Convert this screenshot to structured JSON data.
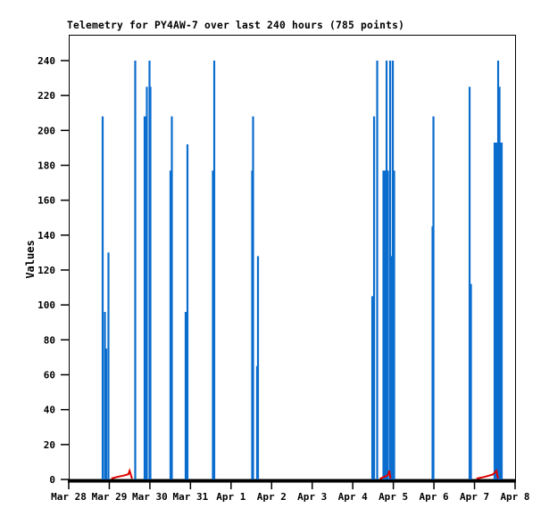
{
  "window": {
    "background": "#ffffff"
  },
  "chart_data": {
    "type": "bar",
    "style": "impulses",
    "title": "Telemetry for PY4AW-7 over last 240 hours (785 points)",
    "xlabel": "",
    "ylabel": "Values",
    "ylim": [
      0,
      255
    ],
    "y_ticks": [
      0,
      20,
      40,
      60,
      80,
      100,
      120,
      140,
      160,
      180,
      200,
      220,
      240
    ],
    "x_tick_labels": [
      "Mar 28",
      "Mar 29",
      "Mar 30",
      "Mar 31",
      "Apr 1",
      "Apr 2",
      "Apr 3",
      "Apr 4",
      "Apr 5",
      "Apr 6",
      "Apr 7",
      "Apr 8"
    ],
    "x_range_days": [
      0,
      11
    ],
    "grid": false,
    "legend": "none",
    "series": [
      {
        "name": "telemetry-impulses",
        "type": "impulse",
        "color": "#0b6dce",
        "points": [
          [
            0.836,
            208
          ],
          [
            0.891,
            96
          ],
          [
            0.924,
            75
          ],
          [
            0.979,
            130
          ],
          [
            1.639,
            240
          ],
          [
            1.87,
            208
          ],
          [
            1.892,
            208
          ],
          [
            1.925,
            225
          ],
          [
            1.991,
            240
          ],
          [
            2.013,
            225
          ],
          [
            2.508,
            177
          ],
          [
            2.541,
            208
          ],
          [
            2.882,
            96
          ],
          [
            2.926,
            192
          ],
          [
            3.553,
            177
          ],
          [
            3.586,
            240
          ],
          [
            4.521,
            177
          ],
          [
            4.543,
            208
          ],
          [
            4.642,
            65
          ],
          [
            4.664,
            128
          ],
          [
            7.481,
            105
          ],
          [
            7.503,
            50
          ],
          [
            7.525,
            208
          ],
          [
            7.602,
            240
          ],
          [
            7.756,
            177
          ],
          [
            7.789,
            177
          ],
          [
            7.833,
            240
          ],
          [
            7.866,
            177
          ],
          [
            7.921,
            240
          ],
          [
            7.954,
            128
          ],
          [
            7.987,
            240
          ],
          [
            8.02,
            177
          ],
          [
            8.966,
            145
          ],
          [
            8.988,
            208
          ],
          [
            9.879,
            225
          ],
          [
            9.912,
            112
          ],
          [
            10.495,
            193
          ],
          [
            10.528,
            193
          ],
          [
            10.561,
            193
          ],
          [
            10.583,
            240
          ],
          [
            10.616,
            225
          ],
          [
            10.649,
            193
          ],
          [
            10.671,
            193
          ]
        ]
      },
      {
        "name": "red-trend-line",
        "type": "line",
        "color": "#dd0000",
        "segments": [
          [
            [
              1.05,
              0.5
            ],
            [
              1.2,
              1.5
            ],
            [
              1.35,
              2.2
            ],
            [
              1.47,
              3.0
            ],
            [
              1.5,
              5.0
            ],
            [
              1.56,
              0.5
            ]
          ],
          [
            [
              7.67,
              0.5
            ],
            [
              7.78,
              1.5
            ],
            [
              7.87,
              2.5
            ],
            [
              7.9,
              5.0
            ],
            [
              7.93,
              0.5
            ]
          ],
          [
            [
              10.05,
              0.5
            ],
            [
              10.25,
              1.5
            ],
            [
              10.45,
              2.8
            ],
            [
              10.54,
              5.0
            ],
            [
              10.58,
              0.5
            ]
          ]
        ]
      }
    ],
    "axis_color": "#000000"
  }
}
